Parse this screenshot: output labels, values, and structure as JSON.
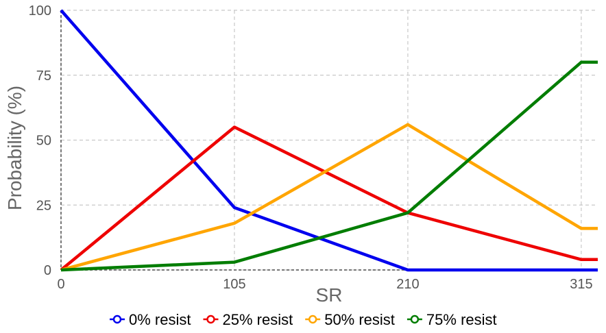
{
  "chart_data": {
    "type": "line",
    "title": "",
    "xlabel": "SR",
    "ylabel": "Probability (%)",
    "x": [
      0,
      105,
      210,
      315
    ],
    "x_tick_labels": [
      "0",
      "105",
      "210",
      "315"
    ],
    "xlim": [
      0,
      325
    ],
    "ylim": [
      0,
      100
    ],
    "y_ticks": [
      0,
      25,
      50,
      75,
      100
    ],
    "y_tick_labels": [
      "0",
      "25",
      "50",
      "75",
      "100"
    ],
    "grid": true,
    "legend_position": "bottom",
    "series": [
      {
        "name": "0% resist",
        "color": "#0000ee",
        "values": [
          100,
          24,
          0,
          0
        ]
      },
      {
        "name": "25% resist",
        "color": "#ee0000",
        "values": [
          0,
          55,
          22,
          4
        ]
      },
      {
        "name": "50% resist",
        "color": "#ffa500",
        "values": [
          0,
          18,
          56,
          16
        ]
      },
      {
        "name": "75% resist",
        "color": "#007d00",
        "values": [
          0,
          3,
          22,
          80
        ]
      }
    ]
  }
}
